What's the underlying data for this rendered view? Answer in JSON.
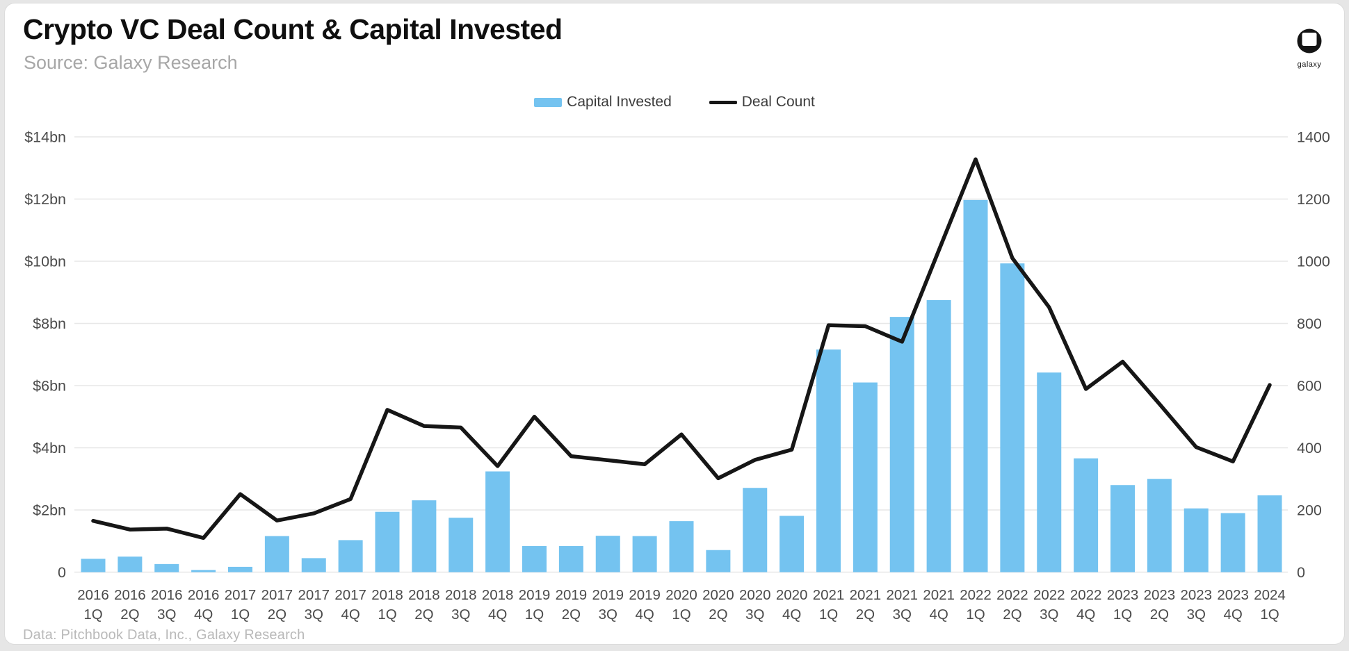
{
  "header": {
    "title": "Crypto VC Deal Count & Capital Invested",
    "subtitle": "Source: Galaxy Research",
    "logo_text": "galaxy"
  },
  "legend": {
    "items": [
      {
        "label": "Capital Invested",
        "type": "bar"
      },
      {
        "label": "Deal Count",
        "type": "line"
      }
    ]
  },
  "footer": {
    "text": "Data: Pitchbook Data, Inc., Galaxy Research"
  },
  "colors": {
    "bar": "#74C3F0",
    "line": "#161616",
    "grid": "#e7e7e7",
    "axis_text": "#4b4b4b",
    "title_text": "#0f0f0f",
    "subtitle_text": "#a7a7a7",
    "footer_text": "#b9b9b9"
  },
  "chart_data": {
    "type": "bar",
    "title": "Crypto VC Deal Count & Capital Invested",
    "grid": true,
    "legend_position": "top",
    "categories": [
      "2016 1Q",
      "2016 2Q",
      "2016 3Q",
      "2016 4Q",
      "2017 1Q",
      "2017 2Q",
      "2017 3Q",
      "2017 4Q",
      "2018 1Q",
      "2018 2Q",
      "2018 3Q",
      "2018 4Q",
      "2019 1Q",
      "2019 2Q",
      "2019 3Q",
      "2019 4Q",
      "2020 1Q",
      "2020 2Q",
      "2020 3Q",
      "2020 4Q",
      "2021 1Q",
      "2021 2Q",
      "2021 3Q",
      "2021 4Q",
      "2022 1Q",
      "2022 2Q",
      "2022 3Q",
      "2022 4Q",
      "2023 1Q",
      "2023 2Q",
      "2023 3Q",
      "2023 4Q",
      "2024 1Q"
    ],
    "series": [
      {
        "name": "Capital Invested",
        "type": "bar",
        "axis": "left",
        "unit": "$bn",
        "values": [
          0.43,
          0.5,
          0.26,
          0.07,
          0.17,
          1.16,
          0.45,
          1.03,
          1.94,
          2.31,
          1.75,
          3.24,
          0.84,
          0.84,
          1.17,
          1.16,
          1.64,
          0.71,
          2.71,
          1.81,
          7.16,
          6.1,
          8.21,
          8.75,
          11.97,
          9.93,
          6.42,
          3.66,
          2.8,
          3.0,
          2.05,
          1.9,
          2.47
        ]
      },
      {
        "name": "Deal Count",
        "type": "line",
        "axis": "right",
        "unit": "deals",
        "values": [
          165,
          137,
          140,
          110,
          251,
          166,
          189,
          235,
          522,
          470,
          465,
          341,
          500,
          373,
          360,
          347,
          443,
          302,
          361,
          394,
          794,
          791,
          741,
          1035,
          1328,
          1010,
          852,
          589,
          677,
          541,
          402,
          356,
          602
        ]
      }
    ],
    "left_axis": {
      "min": 0,
      "max": 14,
      "interval": 2,
      "ticks": [
        "$14bn",
        "$12bn",
        "$10bn",
        "$8bn",
        "$6bn",
        "$4bn",
        "$2bn",
        "0"
      ]
    },
    "right_axis": {
      "min": 0,
      "max": 1400,
      "interval": 200,
      "ticks": [
        "1400",
        "1200",
        "1000",
        "800",
        "600",
        "400",
        "200",
        "0"
      ]
    }
  }
}
